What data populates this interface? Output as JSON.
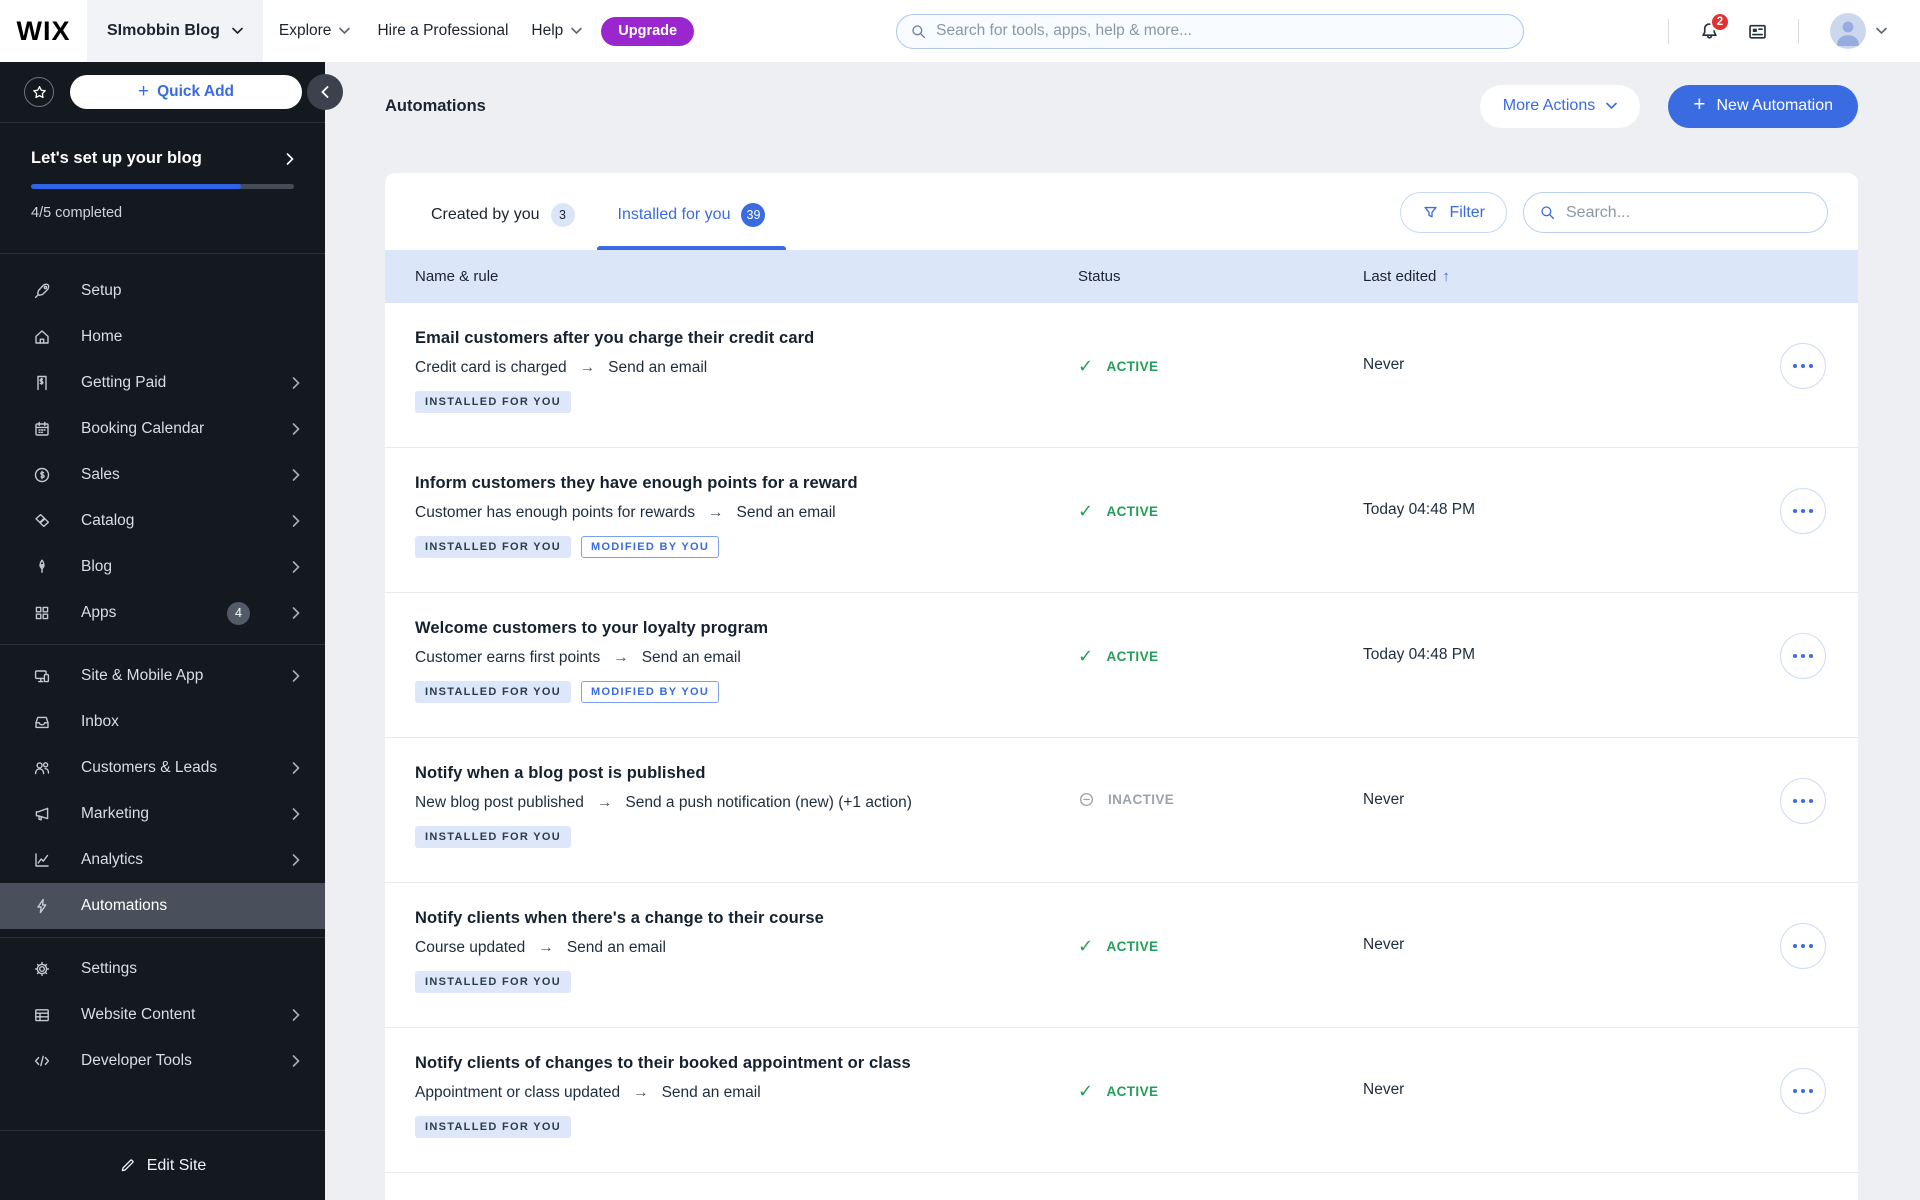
{
  "topbar": {
    "logo": "WIX",
    "site_name": "SImobbin Blog",
    "nav_items": [
      {
        "label": "Explore",
        "chevron": true
      },
      {
        "label": "Hire a Professional",
        "chevron": false
      },
      {
        "label": "Help",
        "chevron": true
      }
    ],
    "upgrade_label": "Upgrade",
    "search_placeholder": "Search for tools, apps, help & more...",
    "notification_count": "2"
  },
  "sidebar": {
    "quick_add_label": "Quick Add",
    "setup": {
      "title": "Let's set up your blog",
      "progress_percent": 80,
      "progress_text": "4/5 completed"
    },
    "menu_groups": [
      {
        "items": [
          {
            "label": "Setup",
            "icon": "rocket"
          },
          {
            "label": "Home",
            "icon": "home"
          },
          {
            "label": "Getting Paid",
            "icon": "invoice",
            "chevron": true
          },
          {
            "label": "Booking Calendar",
            "icon": "calendar",
            "chevron": true
          },
          {
            "label": "Sales",
            "icon": "dollar-circle",
            "chevron": true
          },
          {
            "label": "Catalog",
            "icon": "tags",
            "chevron": true
          },
          {
            "label": "Blog",
            "icon": "pen",
            "chevron": true
          },
          {
            "label": "Apps",
            "icon": "grid",
            "chevron": true,
            "badge": "4"
          }
        ]
      },
      {
        "items": [
          {
            "label": "Site & Mobile App",
            "icon": "devices",
            "chevron": true
          },
          {
            "label": "Inbox",
            "icon": "inbox"
          },
          {
            "label": "Customers & Leads",
            "icon": "people",
            "chevron": true
          },
          {
            "label": "Marketing",
            "icon": "megaphone",
            "chevron": true
          },
          {
            "label": "Analytics",
            "icon": "chart",
            "chevron": true
          },
          {
            "label": "Automations",
            "icon": "bolt",
            "selected": true
          }
        ]
      },
      {
        "items": [
          {
            "label": "Settings",
            "icon": "gear"
          },
          {
            "label": "Website Content",
            "icon": "table",
            "chevron": true
          },
          {
            "label": "Developer Tools",
            "icon": "code",
            "chevron": true
          }
        ]
      }
    ],
    "edit_site_label": "Edit Site"
  },
  "page": {
    "title": "Automations",
    "more_actions_label": "More Actions",
    "new_automation_label": "New Automation",
    "tabs": [
      {
        "label": "Created by you",
        "count": "3",
        "active": false
      },
      {
        "label": "Installed for you",
        "count": "39",
        "active": true
      }
    ],
    "filter_label": "Filter",
    "table_search_placeholder": "Search...",
    "columns": {
      "name": "Name & rule",
      "status": "Status",
      "last_edited": "Last edited"
    },
    "sort_arrow": "↑",
    "rule_arrow": "→",
    "rows": [
      {
        "title": "Email customers after you charge their credit card",
        "trigger": "Credit card is charged",
        "action": "Send an email",
        "status": "ACTIVE",
        "last_edited": "Never",
        "badges": [
          "INSTALLED FOR YOU"
        ]
      },
      {
        "title": "Inform customers they have enough points for a reward",
        "trigger": "Customer has enough points for rewards",
        "action": "Send an email",
        "status": "ACTIVE",
        "last_edited": "Today 04:48 PM",
        "badges": [
          "INSTALLED FOR YOU",
          "MODIFIED BY YOU"
        ]
      },
      {
        "title": "Welcome customers to your loyalty program",
        "trigger": "Customer earns first points",
        "action": "Send an email",
        "status": "ACTIVE",
        "last_edited": "Today 04:48 PM",
        "badges": [
          "INSTALLED FOR YOU",
          "MODIFIED BY YOU"
        ]
      },
      {
        "title": "Notify when a blog post is published",
        "trigger": "New blog post published",
        "action": "Send a push notification (new) (+1 action)",
        "status": "INACTIVE",
        "last_edited": "Never",
        "badges": [
          "INSTALLED FOR YOU"
        ]
      },
      {
        "title": "Notify clients when there's a change to their course",
        "trigger": "Course updated",
        "action": "Send an email",
        "status": "ACTIVE",
        "last_edited": "Never",
        "badges": [
          "INSTALLED FOR YOU"
        ]
      },
      {
        "title": "Notify clients of changes to their booked appointment or class",
        "trigger": "Appointment or class updated",
        "action": "Send an email",
        "status": "ACTIVE",
        "last_edited": "Never",
        "badges": [
          "INSTALLED FOR YOU"
        ]
      }
    ]
  },
  "colors": {
    "primary_blue": "#3a6be0",
    "active_green": "#239e58",
    "inactive_gray": "#9ba4ac",
    "upgrade_purple": "#9a27ce",
    "notification_red": "#e03232",
    "sidebar_bg": "#14181f",
    "table_header_bg": "#dce6f9"
  }
}
